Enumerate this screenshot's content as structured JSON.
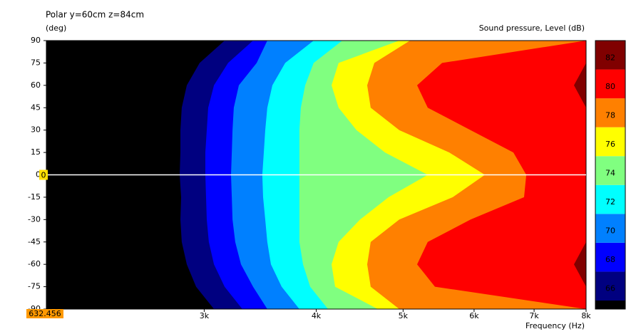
{
  "chart_data": {
    "type": "contour",
    "title": "Polar y=60cm z=84cm",
    "ylabel": "(deg)",
    "xlabel": "Frequency  (Hz)",
    "colorbar_label": "Sound pressure, Level  (dB)",
    "cursor_readout": "632.456",
    "cursor_y": 0,
    "xlim": [
      2000,
      8000
    ],
    "log_x": true,
    "xticks": [
      {
        "value": 3000,
        "label": "3k"
      },
      {
        "value": 4000,
        "label": "4k"
      },
      {
        "value": 5000,
        "label": "5k"
      },
      {
        "value": 6000,
        "label": "6k"
      },
      {
        "value": 7000,
        "label": "7k"
      },
      {
        "value": 8000,
        "label": "8k"
      }
    ],
    "ylim": [
      -90,
      90
    ],
    "yticks": [
      90,
      75,
      60,
      45,
      30,
      15,
      0,
      -15,
      -30,
      -45,
      -60,
      -75,
      -90
    ],
    "below_color": "#000000",
    "y": [
      90,
      75,
      60,
      45,
      30,
      15,
      0,
      -15,
      -30,
      -45,
      -60,
      -75,
      -90
    ],
    "series": [
      {
        "name": "66",
        "color": "#000080",
        "values": [
          3161,
          2965,
          2869,
          2832,
          2822,
          2822,
          2817,
          2827,
          2822,
          2832,
          2869,
          2938,
          3076
        ]
      },
      {
        "name": "68",
        "color": "#0000ff",
        "values": [
          3401,
          3190,
          3076,
          3031,
          3020,
          3009,
          3009,
          3014,
          3020,
          3036,
          3076,
          3161,
          3309
        ]
      },
      {
        "name": "70",
        "color": "#0080ff",
        "values": [
          3528,
          3433,
          3279,
          3237,
          3226,
          3220,
          3214,
          3220,
          3226,
          3249,
          3297,
          3401,
          3528
        ]
      },
      {
        "name": "72",
        "color": "#00ffff",
        "values": [
          3974,
          3694,
          3574,
          3528,
          3509,
          3496,
          3483,
          3490,
          3509,
          3528,
          3561,
          3660,
          3831
        ]
      },
      {
        "name": "74",
        "color": "#80ff80",
        "values": [
          4277,
          3974,
          3888,
          3845,
          3831,
          3831,
          3831,
          3831,
          3831,
          3831,
          3867,
          3938,
          4123
        ]
      },
      {
        "name": "76",
        "color": "#ffff00",
        "values": [
          4951,
          4237,
          4161,
          4237,
          4436,
          4773,
          5327,
          4817,
          4477,
          4237,
          4161,
          4199,
          4687
        ]
      },
      {
        "name": "78",
        "color": "#ff8000",
        "values": [
          5089,
          4644,
          4560,
          4601,
          4951,
          5629,
          6168,
          5680,
          4951,
          4601,
          4560,
          4601,
          4951
        ]
      },
      {
        "name": "80",
        "color": "#ff0000",
        "values": [
          8000,
          5526,
          5183,
          5327,
          5946,
          6637,
          6860,
          6822,
          5946,
          5327,
          5183,
          5426,
          8000
        ]
      },
      {
        "name": "82",
        "color": "#800000",
        "values": [
          8000,
          8000,
          7755,
          8000,
          8000,
          8000,
          8000,
          8000,
          8000,
          8000,
          7755,
          8000,
          8000
        ]
      }
    ]
  }
}
